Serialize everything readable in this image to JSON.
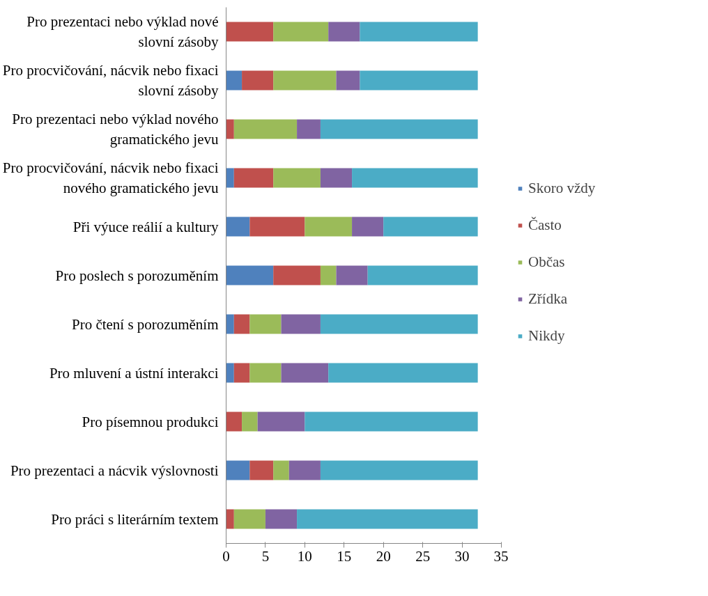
{
  "chart_data": {
    "type": "bar",
    "orientation": "horizontal",
    "stacked": true,
    "categories": [
      "Pro prezentaci nebo výklad nové slovní zásoby",
      "Pro procvičování, nácvik nebo fixaci slovní zásoby",
      "Pro prezentaci nebo výklad nového gramatického jevu",
      "Pro procvičování, nácvik nebo fixaci nového gramatického jevu",
      "Při výuce reálií a kultury",
      "Pro poslech s porozuměním",
      "Pro čtení s porozuměním",
      "Pro mluvení a ústní interakci",
      "Pro písemnou produkci",
      "Pro prezentaci a nácvik výslovnosti",
      "Pro práci s literárním textem"
    ],
    "series": [
      {
        "name": "Skoro vždy",
        "color": "#4f81bd",
        "values": [
          0,
          2,
          0,
          1,
          3,
          6,
          1,
          1,
          0,
          3,
          0
        ]
      },
      {
        "name": "Často",
        "color": "#c0504d",
        "values": [
          6,
          4,
          1,
          5,
          7,
          6,
          2,
          2,
          2,
          3,
          1
        ]
      },
      {
        "name": "Občas",
        "color": "#9bbb59",
        "values": [
          7,
          8,
          8,
          6,
          6,
          2,
          4,
          4,
          2,
          2,
          4
        ]
      },
      {
        "name": "Zřídka",
        "color": "#8064a2",
        "values": [
          4,
          3,
          3,
          4,
          4,
          4,
          5,
          6,
          6,
          4,
          4
        ]
      },
      {
        "name": "Nikdy",
        "color": "#4bacc6",
        "values": [
          15,
          15,
          20,
          16,
          12,
          14,
          20,
          19,
          22,
          20,
          23
        ]
      }
    ],
    "xlim": [
      0,
      35
    ],
    "xticks": [
      0,
      5,
      10,
      15,
      20,
      25,
      30,
      35
    ],
    "grid": false,
    "legend": "right"
  }
}
